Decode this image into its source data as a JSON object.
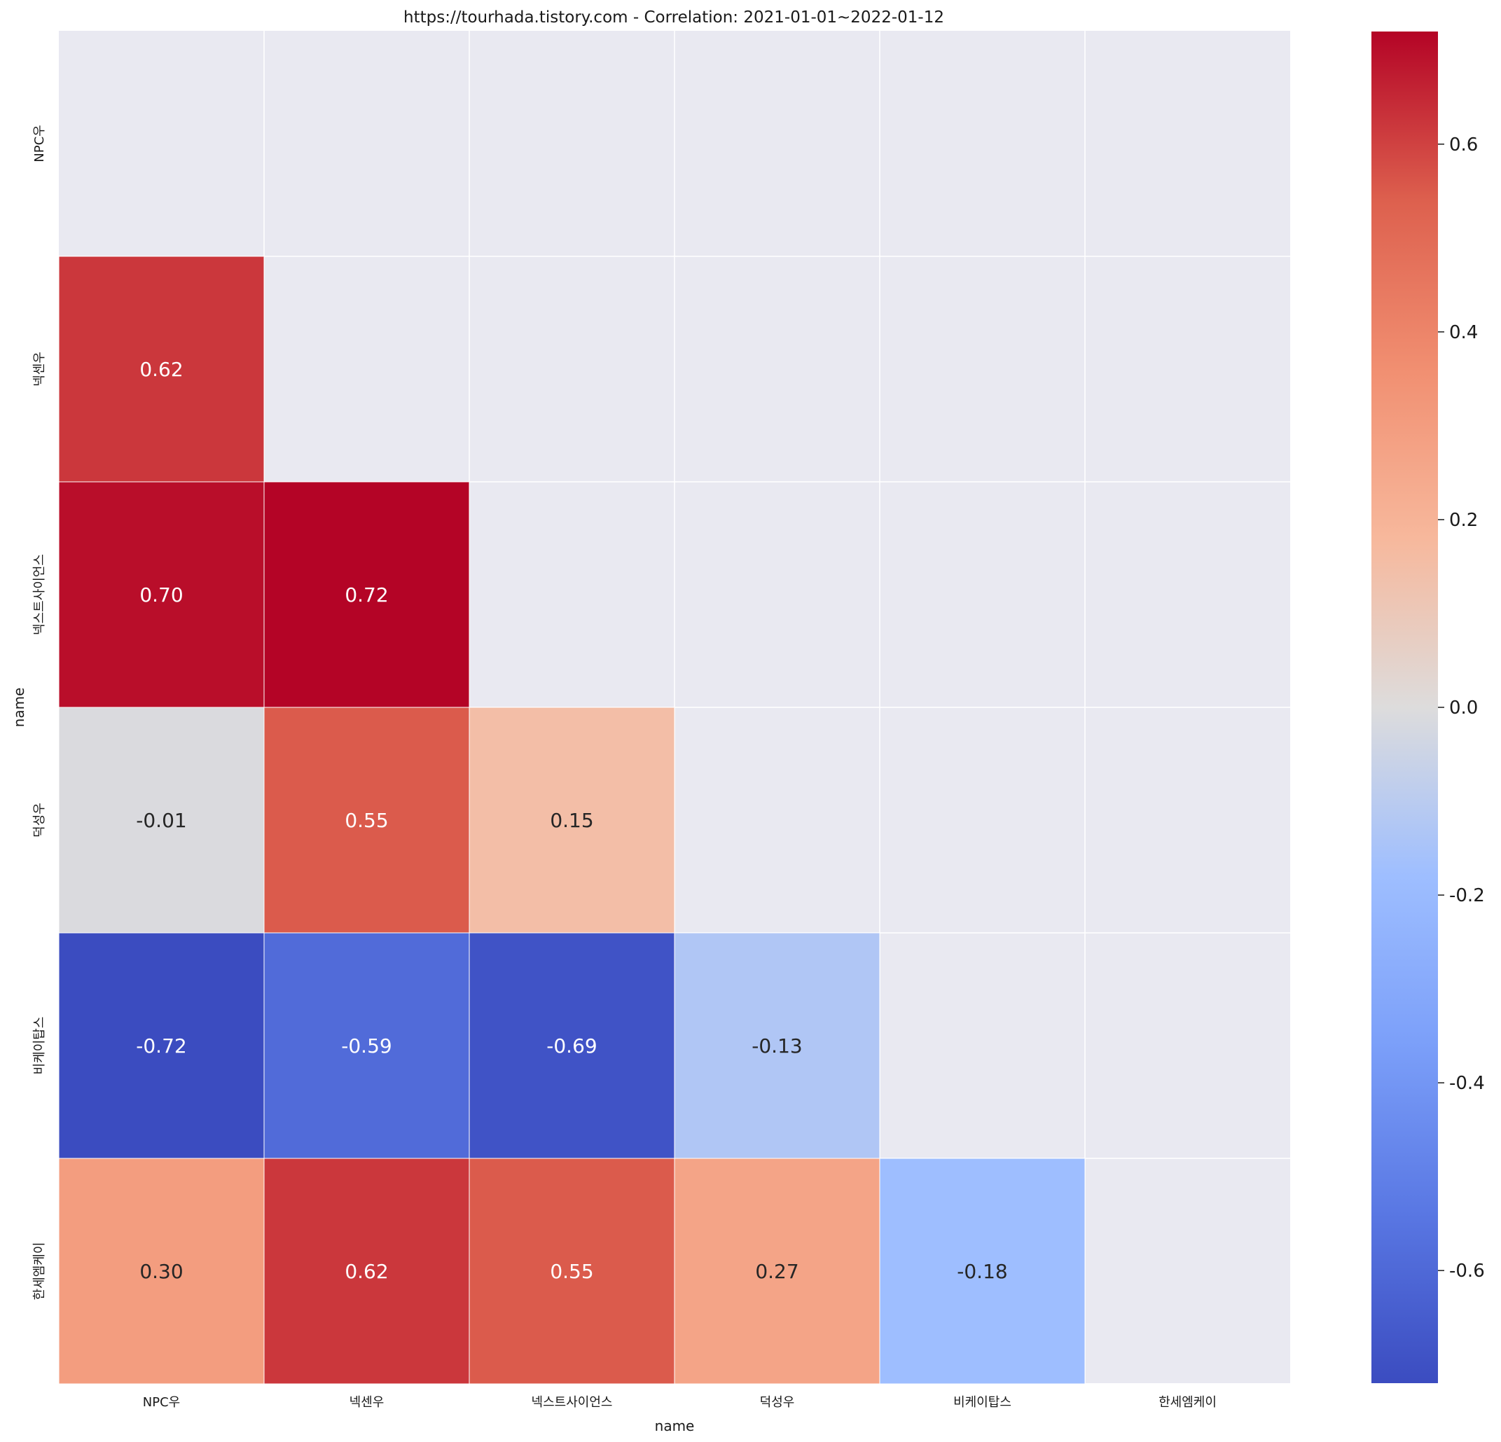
{
  "chart_data": {
    "type": "heatmap",
    "title": "https://tourhada.tistory.com - Correlation: 2021-01-01~2022-01-12",
    "xlabel": "name",
    "ylabel": "name",
    "rows": [
      "NPC우",
      "넥센우",
      "넥스트사이언스",
      "덕성우",
      "비케이탑스",
      "한세엠케이"
    ],
    "columns": [
      "NPC우",
      "넥센우",
      "넥스트사이언스",
      "덕성우",
      "비케이탑스",
      "한세엠케이"
    ],
    "values": [
      [
        null,
        null,
        null,
        null,
        null,
        null
      ],
      [
        0.62,
        null,
        null,
        null,
        null,
        null
      ],
      [
        0.7,
        0.72,
        null,
        null,
        null,
        null
      ],
      [
        -0.01,
        0.55,
        0.15,
        null,
        null,
        null
      ],
      [
        -0.72,
        -0.59,
        -0.69,
        -0.13,
        null,
        null
      ],
      [
        0.3,
        0.62,
        0.55,
        0.27,
        -0.18,
        null
      ]
    ],
    "annotation_format": "0.00",
    "mask": "upper-triangle-including-diagonal",
    "colormap": "coolwarm",
    "vmin": -0.72,
    "vmax": 0.72,
    "colorbar_ticks": [
      "0.6",
      "0.4",
      "0.2",
      "0.0",
      "-0.2",
      "-0.4",
      "-0.6"
    ],
    "colorbar_tick_values": [
      0.6,
      0.4,
      0.2,
      0.0,
      -0.2,
      -0.4,
      -0.6
    ],
    "grid": true,
    "background_color": "#e9e9f1",
    "grid_color": "#ffffff",
    "colorbar_position": "right"
  }
}
